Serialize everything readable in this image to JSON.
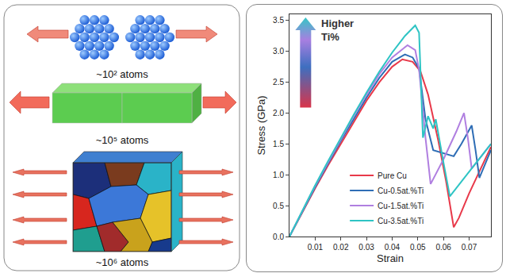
{
  "chart_data": {
    "type": "line",
    "xlabel": "Strain",
    "ylabel": "Stress (GPa)",
    "xlim": [
      0,
      0.0785
    ],
    "xticks": [
      0.01,
      0.02,
      0.03,
      0.04,
      0.05,
      0.06,
      0.07
    ],
    "ylim": [
      0,
      3.6
    ],
    "yticks": [
      {
        "value": 0,
        "label": "0.0"
      },
      0.5,
      {
        "value": 1,
        "label": "1.0"
      },
      1.5,
      {
        "value": 2,
        "label": "2.0"
      },
      2.5,
      {
        "value": 3,
        "label": "3.0"
      },
      3.5
    ],
    "grid": false,
    "legend": "bottom",
    "annotations": [
      "Higher Ti%"
    ],
    "series": [
      {
        "name": "Pure Cu",
        "color": "#e8394a",
        "x": [
          0,
          0.005,
          0.01,
          0.015,
          0.02,
          0.025,
          0.03,
          0.035,
          0.04,
          0.044,
          0.048,
          0.051,
          0.054,
          0.058,
          0.061,
          0.064,
          0.066,
          0.07,
          0.074,
          0.0785
        ],
        "values": [
          0,
          0.4,
          0.78,
          1.15,
          1.5,
          1.85,
          2.2,
          2.5,
          2.75,
          2.87,
          2.83,
          2.68,
          2.3,
          1.55,
          0.9,
          0.15,
          0.3,
          0.7,
          1.05,
          1.45
        ]
      },
      {
        "name": "Cu-0.5at.%Ti",
        "color": "#2e6db5",
        "x": [
          0,
          0.005,
          0.01,
          0.015,
          0.02,
          0.025,
          0.03,
          0.035,
          0.04,
          0.045,
          0.048,
          0.0505,
          0.053,
          0.056,
          0.06,
          0.064,
          0.067,
          0.071,
          0.0725,
          0.074,
          0.0785
        ],
        "values": [
          0,
          0.41,
          0.8,
          1.18,
          1.55,
          1.9,
          2.25,
          2.57,
          2.83,
          2.95,
          2.9,
          2.72,
          1.9,
          1.4,
          1.35,
          1.3,
          1.5,
          1.8,
          1.4,
          0.95,
          1.4
        ]
      },
      {
        "name": "Cu-1.5at.%Ti",
        "color": "#b07fe0",
        "x": [
          0,
          0.005,
          0.01,
          0.015,
          0.02,
          0.025,
          0.03,
          0.035,
          0.04,
          0.046,
          0.049,
          0.0505,
          0.053,
          0.055,
          0.06,
          0.065,
          0.068,
          0.0695,
          0.071,
          0.0785
        ],
        "values": [
          0,
          0.42,
          0.82,
          1.2,
          1.58,
          1.95,
          2.3,
          2.63,
          2.9,
          3.1,
          3.02,
          2.7,
          1.6,
          0.85,
          1.25,
          1.7,
          2.0,
          1.6,
          1.1,
          1.5
        ]
      },
      {
        "name": "Cu-3.5at.%Ti",
        "color": "#2ec4c4",
        "x": [
          0,
          0.005,
          0.01,
          0.015,
          0.02,
          0.025,
          0.03,
          0.035,
          0.04,
          0.045,
          0.049,
          0.0505,
          0.052,
          0.054,
          0.056,
          0.057,
          0.06,
          0.0625,
          0.07,
          0.0785
        ],
        "values": [
          0,
          0.42,
          0.83,
          1.22,
          1.6,
          1.97,
          2.33,
          2.67,
          2.98,
          3.25,
          3.42,
          3.3,
          1.6,
          1.95,
          1.75,
          1.9,
          1.2,
          0.65,
          1.05,
          1.5
        ]
      }
    ]
  },
  "diagram": {
    "labels": [
      "~10² atoms",
      "~10⁵ atoms",
      "~10⁶ atoms"
    ]
  }
}
